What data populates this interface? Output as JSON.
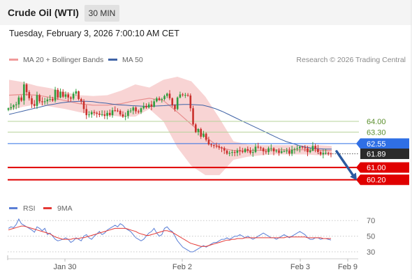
{
  "header": {
    "title": "Crude Oil (WTI)",
    "interval": "30 MIN"
  },
  "datetime": "Tuesday, February 3, 2026 7:00:10 AM CET",
  "legend": {
    "bollinger": "MA 20 + Bollinger Bands",
    "ma50": "MA 50"
  },
  "credit": "Research © 2026 Trading Central",
  "rsi_legend": {
    "rsi": "RSI",
    "ma": "9MA"
  },
  "colors": {
    "up": "#2e9e3e",
    "down": "#c9302c",
    "band": "#f6c9c9",
    "ma20": "#e88f8f",
    "ma50": "#3f63a6",
    "support": "#e00000",
    "resistance_line": "#b6d39a",
    "resistance_text": "#5a8e2c",
    "pivot": "#2f6fe5",
    "price_tag": "#2b2b2b",
    "arrow": "#2b5aa0",
    "rsi": "#5b7fd6",
    "rsi_ma": "#e53935"
  },
  "chart_data": [
    {
      "type": "candlestick",
      "title": "Crude Oil (WTI)",
      "timeframe": "30 MIN",
      "ylim": [
        59.1,
        67.4
      ],
      "x_ticks": [
        "Jan 30",
        "Feb 2",
        "Feb 3",
        "Feb 9"
      ],
      "ohlc_close": [
        64.85,
        64.92,
        65.05,
        65.1,
        65.55,
        65.35,
        66.4,
        65.9,
        65.5,
        65.12,
        65.0,
        65.7,
        65.3,
        65.25,
        65.3,
        65.42,
        65.45,
        65.35,
        66.05,
        65.55,
        65.92,
        65.6,
        65.75,
        65.55,
        65.48,
        65.8,
        65.95,
        65.45,
        65.3,
        64.8,
        64.4,
        64.45,
        64.6,
        64.55,
        64.5,
        64.42,
        64.45,
        64.35,
        64.55,
        64.4,
        64.72,
        64.7,
        64.68,
        64.45,
        64.3,
        64.35,
        64.68,
        64.7,
        64.9,
        64.65,
        64.6,
        64.85,
        65.0,
        64.9,
        65.1,
        64.95,
        65.3,
        65.5,
        65.4,
        65.45,
        65.65,
        65.8,
        65.5,
        65.05,
        64.8,
        65.55,
        65.75,
        65.7,
        65.72,
        65.68,
        64.85,
        63.8,
        63.3,
        63.5,
        63.0,
        63.2,
        62.8,
        62.5,
        62.45,
        62.4,
        62.38,
        62.3,
        62.25,
        62.1,
        61.9,
        61.95,
        62.0,
        61.95,
        62.1,
        62.05,
        62.0,
        62.2,
        62.1,
        61.95,
        62.0,
        62.35,
        62.3,
        62.25,
        62.05,
        62.0,
        62.25,
        62.25,
        62.05,
        62.1,
        61.95,
        62.05,
        62.05,
        62.1,
        61.9,
        62.15,
        62.2,
        62.25,
        62.35,
        62.3,
        62.25,
        62.0,
        62.1,
        62.4,
        62.2,
        62.0,
        61.85,
        61.95,
        61.95,
        61.92,
        61.89
      ],
      "ma50": [
        64.45,
        64.55,
        64.65,
        64.75,
        64.85,
        64.95,
        65.05,
        65.12,
        65.2,
        65.25,
        65.28,
        65.3,
        65.3,
        65.28,
        65.22,
        65.18,
        65.12,
        65.08,
        65.05,
        65.02,
        65.0,
        64.98,
        64.98,
        65.0,
        65.02,
        65.05,
        65.08,
        65.1,
        65.1,
        65.08,
        65.05,
        64.95,
        64.82,
        64.65,
        64.45,
        64.25,
        64.05,
        63.85,
        63.65,
        63.45,
        63.25,
        63.05,
        62.85,
        62.68,
        62.55,
        62.42,
        62.32,
        62.25,
        62.22,
        62.2,
        62.2
      ],
      "ma20_bollinger": [
        {
          "mid": 65.7,
          "upper": 66.7,
          "lower": 64.7
        },
        {
          "mid": 65.75,
          "upper": 66.55,
          "lower": 64.95
        },
        {
          "mid": 65.7,
          "upper": 66.3,
          "lower": 65.1
        },
        {
          "mid": 65.55,
          "upper": 66.15,
          "lower": 64.95
        },
        {
          "mid": 65.35,
          "upper": 65.9,
          "lower": 64.8
        },
        {
          "mid": 65.15,
          "upper": 65.7,
          "lower": 64.6
        },
        {
          "mid": 65.05,
          "upper": 65.65,
          "lower": 64.45
        },
        {
          "mid": 65.05,
          "upper": 65.7,
          "lower": 64.4
        },
        {
          "mid": 65.15,
          "upper": 66.0,
          "lower": 64.3
        },
        {
          "mid": 65.35,
          "upper": 66.4,
          "lower": 64.3
        },
        {
          "mid": 65.5,
          "upper": 66.2,
          "lower": 64.8
        },
        {
          "mid": 65.35,
          "upper": 66.7,
          "lower": 64.0
        },
        {
          "mid": 64.6,
          "upper": 66.9,
          "lower": 62.3
        },
        {
          "mid": 63.8,
          "upper": 66.6,
          "lower": 61.1
        },
        {
          "mid": 63.0,
          "upper": 65.6,
          "lower": 60.5
        },
        {
          "mid": 62.3,
          "upper": 64.2,
          "lower": 60.5
        },
        {
          "mid": 62.1,
          "upper": 62.7,
          "lower": 61.5
        },
        {
          "mid": 62.1,
          "upper": 62.5,
          "lower": 61.7
        },
        {
          "mid": 62.12,
          "upper": 62.45,
          "lower": 61.8
        },
        {
          "mid": 62.15,
          "upper": 62.45,
          "lower": 61.85
        },
        {
          "mid": 62.15,
          "upper": 62.45,
          "lower": 61.85
        },
        {
          "mid": 62.15,
          "upper": 62.45,
          "lower": 61.85
        },
        {
          "mid": 62.12,
          "upper": 62.45,
          "lower": 61.8
        },
        {
          "mid": 62.1,
          "upper": 62.4,
          "lower": 61.8
        }
      ],
      "levels": [
        {
          "value": 64.0,
          "label": "64.00",
          "kind": "resistance"
        },
        {
          "value": 63.3,
          "label": "63.30",
          "kind": "resistance"
        },
        {
          "value": 62.55,
          "label": "62.55",
          "kind": "pivot"
        },
        {
          "value": 61.89,
          "label": "61.89",
          "kind": "last_price"
        },
        {
          "value": 61.0,
          "label": "61.00",
          "kind": "support"
        },
        {
          "value": 60.2,
          "label": "60.20",
          "kind": "support"
        }
      ],
      "forecast_arrow": {
        "from": 62.05,
        "to": 60.35
      }
    },
    {
      "type": "line",
      "title": "RSI",
      "ylim": [
        22,
        80
      ],
      "y_ticks": [
        70,
        50,
        30
      ],
      "series": [
        {
          "name": "RSI",
          "values": [
            60,
            62,
            61,
            65,
            72,
            66,
            64,
            62,
            60,
            58,
            55,
            62,
            60,
            57,
            60,
            52,
            54,
            50,
            46,
            44,
            45,
            46,
            48,
            46,
            42,
            44,
            48,
            46,
            44,
            50,
            52,
            48,
            46,
            50,
            53,
            56,
            52,
            54,
            58,
            60,
            62,
            64,
            62,
            66,
            64,
            60,
            58,
            56,
            52,
            48,
            46,
            44,
            46,
            50,
            54,
            56,
            60,
            54,
            50,
            52,
            60,
            62,
            58,
            56,
            50,
            44,
            40,
            36,
            34,
            32,
            30,
            30,
            32,
            34,
            36,
            38,
            36,
            38,
            40,
            42,
            42,
            44,
            46,
            46,
            48,
            46,
            48,
            50,
            50,
            52,
            50,
            48,
            50,
            48,
            46,
            48,
            50,
            52,
            54,
            52,
            50,
            48,
            48,
            46,
            48,
            50,
            52,
            50,
            48,
            50,
            52,
            54,
            56,
            54,
            52,
            48,
            46,
            46,
            48,
            48,
            46,
            47,
            47,
            46,
            45
          ]
        },
        {
          "name": "9MA",
          "values": [
            58,
            59,
            60,
            61,
            62,
            63,
            63,
            62,
            61,
            60,
            59,
            58,
            57,
            56,
            55,
            54,
            53,
            51,
            49,
            48,
            47,
            46,
            46,
            46,
            46,
            47,
            47,
            47,
            48,
            48,
            49,
            50,
            51,
            52,
            53,
            54,
            55,
            56,
            57,
            58,
            59,
            60,
            60,
            60,
            60,
            60,
            59,
            58,
            57,
            56,
            54,
            53,
            52,
            51,
            51,
            52,
            53,
            54,
            55,
            56,
            57,
            57,
            56,
            55,
            53,
            51,
            49,
            47,
            45,
            43,
            41,
            40,
            39,
            38,
            37,
            37,
            37,
            38,
            39,
            40,
            41,
            42,
            43,
            44,
            45,
            45,
            46,
            46,
            47,
            47,
            47,
            48,
            48,
            48,
            48,
            48,
            48,
            48,
            48,
            48,
            48,
            48,
            48,
            48,
            48,
            48,
            48,
            49,
            49,
            49,
            49,
            49,
            49,
            49,
            49,
            48,
            48,
            48,
            48,
            48,
            48,
            47,
            47,
            47,
            47
          ]
        }
      ]
    }
  ]
}
